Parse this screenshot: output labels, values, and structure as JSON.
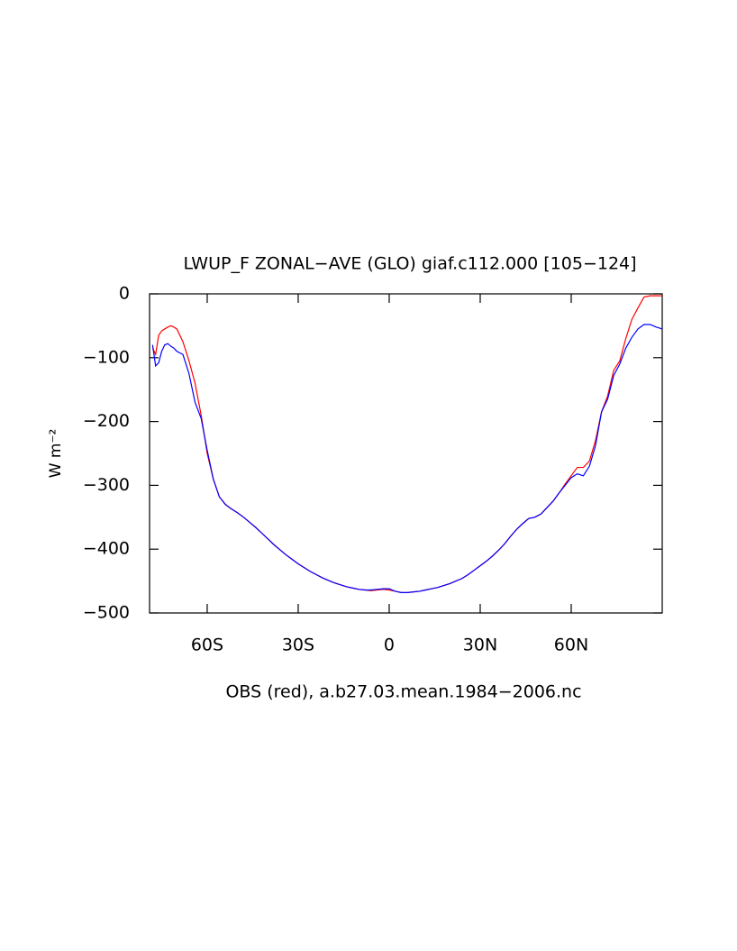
{
  "chart_data": {
    "type": "line",
    "title": "LWUP_F ZONAL−AVE (GLO) giaf.c112.000 [105−124]",
    "x_label": "OBS (red), a.b27.03.mean.1984−2006.nc",
    "y_label": "W m⁻²",
    "x": [
      -78,
      -77,
      -76,
      -75,
      -74,
      -73,
      -72,
      -71,
      -70,
      -68,
      -66,
      -64,
      -62,
      -60,
      -58,
      -56,
      -54,
      -52,
      -50,
      -48,
      -46,
      -44,
      -42,
      -40,
      -38,
      -36,
      -34,
      -32,
      -30,
      -28,
      -26,
      -24,
      -22,
      -20,
      -18,
      -16,
      -14,
      -12,
      -10,
      -8,
      -6,
      -4,
      -2,
      0,
      2,
      4,
      6,
      8,
      10,
      12,
      14,
      16,
      18,
      20,
      22,
      24,
      26,
      28,
      30,
      32,
      34,
      36,
      38,
      40,
      42,
      44,
      46,
      48,
      50,
      52,
      54,
      56,
      58,
      60,
      62,
      64,
      66,
      68,
      70,
      72,
      74,
      76,
      78,
      80,
      82,
      84,
      86,
      88,
      90
    ],
    "series": [
      {
        "color": "#ff0000",
        "values": [
          -85,
          -95,
          -65,
          -58,
          -55,
          -52,
          -50,
          -52,
          -55,
          -75,
          -105,
          -140,
          -190,
          -250,
          -290,
          -318,
          -330,
          -337,
          -343,
          -350,
          -358,
          -366,
          -375,
          -384,
          -393,
          -401,
          -409,
          -416,
          -423,
          -429,
          -435,
          -440,
          -445,
          -449,
          -453,
          -456,
          -459,
          -461,
          -463,
          -464,
          -465,
          -464,
          -463,
          -464,
          -466,
          -468,
          -468,
          -467,
          -466,
          -464,
          -462,
          -460,
          -457,
          -454,
          -450,
          -446,
          -440,
          -433,
          -426,
          -419,
          -411,
          -402,
          -392,
          -380,
          -369,
          -360,
          -352,
          -350,
          -345,
          -335,
          -325,
          -312,
          -298,
          -285,
          -272,
          -272,
          -262,
          -230,
          -185,
          -160,
          -120,
          -105,
          -70,
          -40,
          -22,
          -5,
          -3,
          -3,
          -3
        ]
      },
      {
        "color": "#0000ff",
        "values": [
          -80,
          -113,
          -108,
          -90,
          -80,
          -78,
          -82,
          -85,
          -90,
          -95,
          -125,
          -170,
          -195,
          -245,
          -290,
          -318,
          -330,
          -337,
          -343,
          -350,
          -358,
          -366,
          -375,
          -384,
          -393,
          -401,
          -409,
          -416,
          -423,
          -429,
          -435,
          -440,
          -445,
          -449,
          -453,
          -456,
          -459,
          -461,
          -463,
          -464,
          -464,
          -463,
          -462,
          -462,
          -466,
          -468,
          -468,
          -467,
          -466,
          -464,
          -462,
          -460,
          -457,
          -454,
          -450,
          -446,
          -440,
          -433,
          -426,
          -419,
          -411,
          -402,
          -392,
          -380,
          -369,
          -360,
          -352,
          -350,
          -345,
          -335,
          -325,
          -312,
          -300,
          -288,
          -282,
          -285,
          -270,
          -238,
          -185,
          -165,
          -128,
          -110,
          -85,
          -68,
          -55,
          -48,
          -48,
          -52,
          -55
        ]
      }
    ],
    "xlim": [
      -79,
      90
    ],
    "xticks": [
      {
        "value": -60,
        "label": "60S"
      },
      {
        "value": -30,
        "label": "30S"
      },
      0,
      {
        "value": 30,
        "label": "30N"
      },
      {
        "value": 60,
        "label": "60N"
      }
    ],
    "ylim": [
      -500,
      0
    ],
    "yticks": [
      0,
      {
        "value": -100,
        "label": "−100"
      },
      {
        "value": -200,
        "label": "−200"
      },
      {
        "value": -300,
        "label": "−300"
      },
      {
        "value": -400,
        "label": "−400"
      },
      {
        "value": -500,
        "label": "−500"
      }
    ],
    "grid": false
  }
}
